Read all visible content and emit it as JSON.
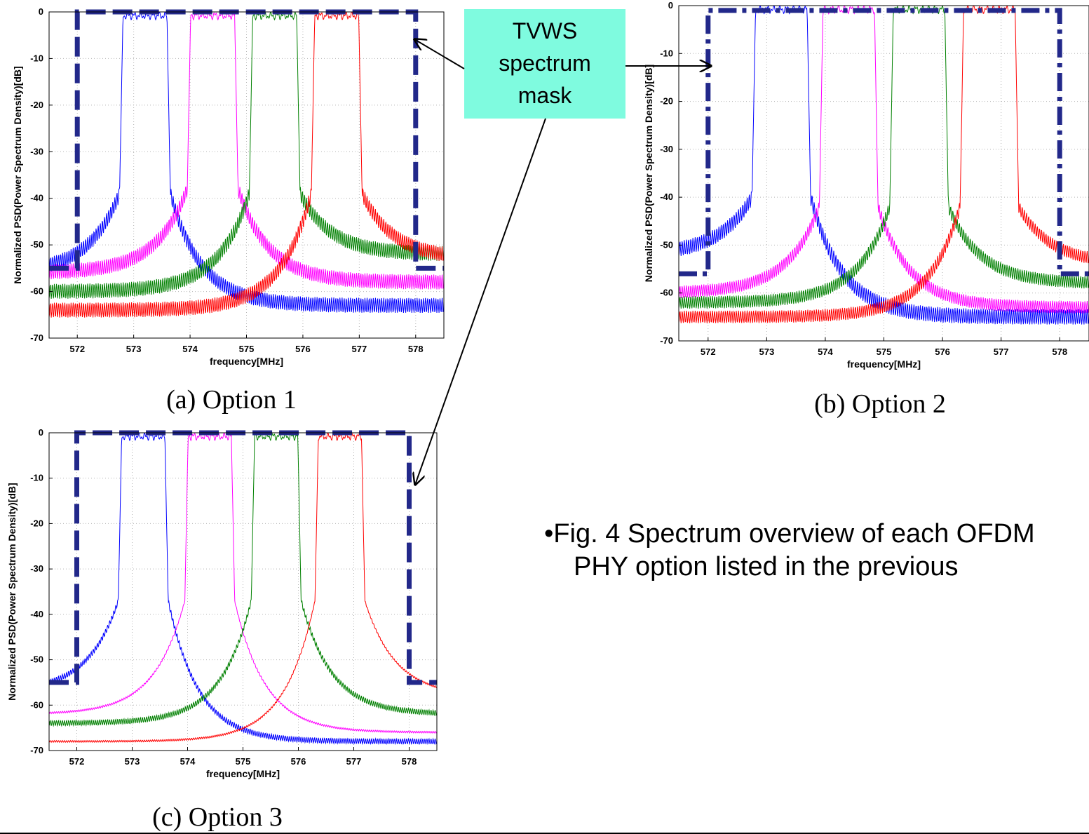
{
  "callout": {
    "lines": [
      "TVWS",
      "spectrum",
      "mask"
    ],
    "fill": "#7ffbdf"
  },
  "figure_caption": {
    "line1": "•Fig. 4 Spectrum overview of each OFDM",
    "line2": "PHY option listed in the previous"
  },
  "colors": {
    "blue": "#0000ff",
    "magenta": "#ff00ff",
    "green": "#008000",
    "red": "#ff0000",
    "mask": "#22288a"
  },
  "chart_data": [
    {
      "type": "line",
      "caption": "(a) Option 1",
      "xlabel": "frequency[MHz]",
      "ylabel": "Normalized PSD(Power Spectrum Density)[dB]",
      "xlim": [
        571.5,
        578.5
      ],
      "ylim": [
        -70,
        0
      ],
      "xticks": [
        572,
        573,
        574,
        575,
        576,
        577,
        578
      ],
      "yticks": [
        0,
        -10,
        -20,
        -30,
        -40,
        -50,
        -60,
        -70
      ],
      "grid": true,
      "mask": {
        "x": [
          571.5,
          572,
          572,
          578,
          578,
          578.5
        ],
        "y": [
          -55,
          -55,
          0,
          0,
          -55,
          -55
        ]
      },
      "series": [
        {
          "color": "blue",
          "center": 573.2,
          "halfwidth": 0.45,
          "floor_left": -56,
          "floor_right": -63,
          "edge": -39,
          "ripple": 1.6
        },
        {
          "color": "magenta",
          "center": 574.4,
          "halfwidth": 0.45,
          "floor_left": -56,
          "floor_right": -58,
          "edge": -38,
          "ripple": 1.6
        },
        {
          "color": "green",
          "center": 575.5,
          "halfwidth": 0.45,
          "floor_left": -60,
          "floor_right": -52,
          "edge": -39,
          "ripple": 1.6
        },
        {
          "color": "red",
          "center": 576.6,
          "halfwidth": 0.45,
          "floor_left": -64,
          "floor_right": -53,
          "edge": -39,
          "ripple": 1.6
        }
      ]
    },
    {
      "type": "line",
      "caption": "(b) Option 2",
      "xlabel": "frequency[MHz]",
      "ylabel": "Normalized PSD(Power Spectrum Density)[dB]",
      "xlim": [
        571.5,
        578.5
      ],
      "ylim": [
        -70,
        0
      ],
      "xticks": [
        572,
        573,
        574,
        575,
        576,
        577,
        578
      ],
      "yticks": [
        0,
        -10,
        -20,
        -30,
        -40,
        -50,
        -60,
        -70
      ],
      "grid": true,
      "mask": {
        "x": [
          571.5,
          572,
          572,
          578,
          578,
          578.5
        ],
        "y": [
          -56,
          -56,
          -1,
          -1,
          -56,
          -56
        ]
      },
      "series": [
        {
          "color": "blue",
          "center": 573.25,
          "halfwidth": 0.5,
          "floor_left": -52,
          "floor_right": -65,
          "edge": -40,
          "ripple": 1.6
        },
        {
          "color": "magenta",
          "center": 574.4,
          "halfwidth": 0.5,
          "floor_left": -60,
          "floor_right": -63,
          "edge": -42,
          "ripple": 1.3
        },
        {
          "color": "green",
          "center": 575.6,
          "halfwidth": 0.5,
          "floor_left": -62,
          "floor_right": -58,
          "edge": -42,
          "ripple": 1.3
        },
        {
          "color": "red",
          "center": 576.8,
          "halfwidth": 0.5,
          "floor_left": -65,
          "floor_right": -54,
          "edge": -42,
          "ripple": 1.3
        }
      ]
    },
    {
      "type": "line",
      "caption": "(c) Option 3",
      "xlabel": "frequency[MHz]",
      "ylabel": "Normalized PSD(Power Spectrum Density)[dB]",
      "xlim": [
        571.5,
        578.5
      ],
      "ylim": [
        -70,
        0
      ],
      "xticks": [
        572,
        573,
        574,
        575,
        576,
        577,
        578
      ],
      "yticks": [
        0,
        -10,
        -20,
        -30,
        -40,
        -50,
        -60,
        -70
      ],
      "grid": true,
      "mask": {
        "x": [
          571.5,
          572,
          572,
          578,
          578,
          578.5
        ],
        "y": [
          -55,
          -55,
          0,
          0,
          -55,
          -55
        ]
      },
      "series": [
        {
          "color": "blue",
          "center": 573.2,
          "halfwidth": 0.45,
          "floor_left": -57,
          "floor_right": -68,
          "edge": -37,
          "ripple": 0.6
        },
        {
          "color": "magenta",
          "center": 574.4,
          "halfwidth": 0.45,
          "floor_left": -62,
          "floor_right": -66,
          "edge": -37,
          "ripple": 0.2
        },
        {
          "color": "green",
          "center": 575.6,
          "halfwidth": 0.45,
          "floor_left": -64,
          "floor_right": -62,
          "edge": -37,
          "ripple": 0.6
        },
        {
          "color": "red",
          "center": 576.75,
          "halfwidth": 0.45,
          "floor_left": -68,
          "floor_right": -58,
          "edge": -37,
          "ripple": 0.2
        }
      ]
    }
  ]
}
